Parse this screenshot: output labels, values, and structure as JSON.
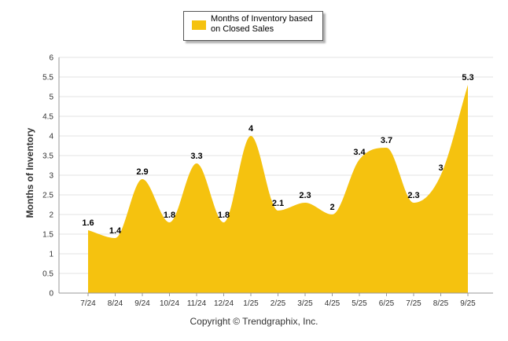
{
  "chart_data": {
    "type": "area",
    "categories": [
      "7/24",
      "8/24",
      "9/24",
      "10/24",
      "11/24",
      "12/24",
      "1/25",
      "2/25",
      "3/25",
      "4/25",
      "5/25",
      "6/25",
      "7/25",
      "8/25",
      "9/25"
    ],
    "series": [
      {
        "name": "Months of Inventory based on Closed Sales",
        "values": [
          1.6,
          1.4,
          2.9,
          1.8,
          3.3,
          1.8,
          4,
          2.1,
          2.3,
          2,
          3.4,
          3.7,
          2.3,
          3,
          5.3
        ],
        "color": "#F5C20F"
      }
    ],
    "data_labels": [
      "1.6",
      "1.4",
      "2.9",
      "1.8",
      "3.3",
      "1.8",
      "4",
      "2.1",
      "2.3",
      "2",
      "3.4",
      "3.7",
      "2.3",
      "3",
      "5.3"
    ],
    "y_ticks": [
      "0",
      "0.5",
      "1",
      "1.5",
      "2",
      "2.5",
      "3",
      "3.5",
      "4",
      "4.5",
      "5",
      "5.5",
      "6"
    ],
    "ylabel": "Months of Inventory",
    "xlabel": "",
    "ylim": [
      0,
      6
    ],
    "grid": true,
    "legend_position": "top-center",
    "curve": "smooth"
  },
  "legend": {
    "label": "Months of Inventory based on Closed Sales"
  },
  "footer": {
    "copyright": "Copyright © Trendgraphix, Inc."
  }
}
